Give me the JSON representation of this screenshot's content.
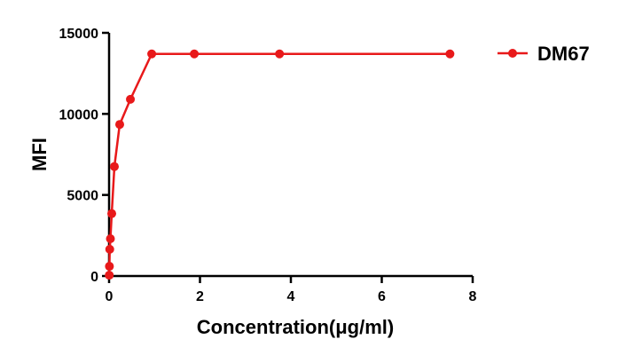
{
  "chart_data": {
    "type": "line",
    "title": "",
    "xlabel": "Concentration(μg/ml)",
    "ylabel": "MFI",
    "xlim": [
      0,
      8
    ],
    "ylim": [
      0,
      15000
    ],
    "x_ticks": [
      0,
      2,
      4,
      6,
      8
    ],
    "y_ticks": [
      0,
      5000,
      10000,
      15000
    ],
    "grid": false,
    "legend_position": "top-right",
    "series": [
      {
        "name": "DM67",
        "color": "#e8191a",
        "marker": "circle",
        "x": [
          0.0037,
          0.0073,
          0.0146,
          0.0293,
          0.0586,
          0.117,
          0.234,
          0.469,
          0.938,
          1.875,
          3.75,
          7.5
        ],
        "y": [
          50,
          600,
          1650,
          2300,
          3850,
          6750,
          9350,
          10900,
          13700,
          13700,
          13700,
          13700
        ]
      }
    ]
  }
}
